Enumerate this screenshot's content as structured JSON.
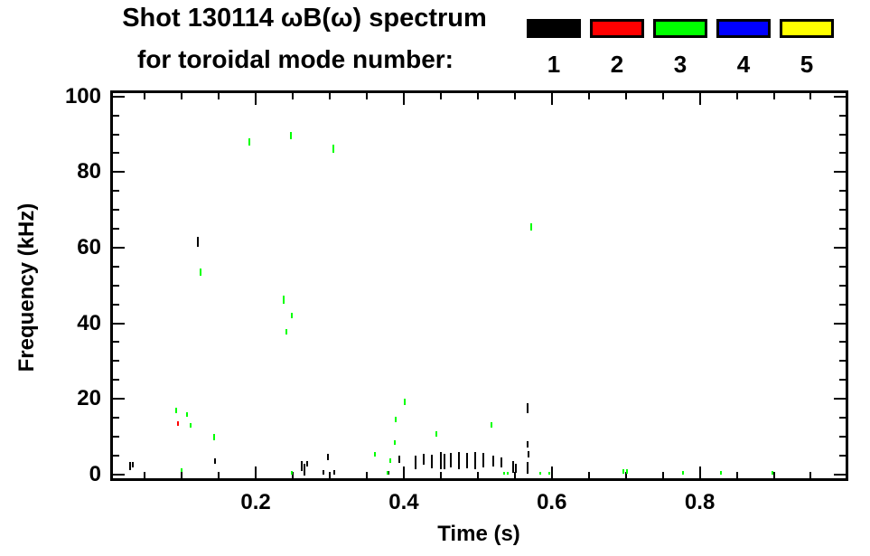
{
  "title": {
    "line1": "Shot 130114 ωB(ω) spectrum",
    "line2": "for toroidal mode number:"
  },
  "legend": {
    "entries": [
      {
        "label": "1",
        "color": "#000000"
      },
      {
        "label": "2",
        "color": "#ff0000"
      },
      {
        "label": "3",
        "color": "#00ff00"
      },
      {
        "label": "4",
        "color": "#0000ff"
      },
      {
        "label": "5",
        "color": "#ffff00"
      }
    ]
  },
  "chart_data": {
    "type": "scatter",
    "title": "Shot 130114 ωB(ω) spectrum for toroidal mode number:",
    "xlabel": "Time (s)",
    "ylabel": "Frequency (kHz)",
    "xlim": [
      0.007,
      0.997
    ],
    "ylim": [
      -1.0,
      100.9
    ],
    "x_major_ticks": [
      0.2,
      0.4,
      0.6,
      0.8
    ],
    "x_tick_labels": [
      "0.2",
      "0.4",
      "0.6",
      "0.8"
    ],
    "x_minor_step": 0.05,
    "y_major_ticks": [
      0,
      20,
      40,
      60,
      80,
      100
    ],
    "y_tick_labels": [
      "0",
      "20",
      "40",
      "60",
      "80",
      "100"
    ],
    "y_minor_step": 5,
    "grid": false,
    "legend_position": "top-right",
    "point_format": "[time_s, freq_khz, vertical_extent_khz]",
    "series": [
      {
        "name": "1",
        "color": "#000000",
        "points": [
          [
            0.03,
            2.2,
            2.0
          ],
          [
            0.034,
            2.6,
            1.5
          ],
          [
            0.122,
            61.5,
            2.5
          ],
          [
            0.145,
            3.5,
            1.5
          ],
          [
            0.262,
            2.2,
            2.5
          ],
          [
            0.266,
            1.3,
            3.0
          ],
          [
            0.27,
            2.8,
            1.5
          ],
          [
            0.291,
            0.6,
            1.2
          ],
          [
            0.297,
            4.6,
            1.5
          ],
          [
            0.306,
            0.6,
            1.2
          ],
          [
            0.379,
            0.5,
            1.0
          ],
          [
            0.394,
            4.0,
            2.0
          ],
          [
            0.416,
            3.2,
            3.5
          ],
          [
            0.427,
            4.0,
            3.0
          ],
          [
            0.438,
            3.4,
            3.5
          ],
          [
            0.45,
            3.6,
            4.5
          ],
          [
            0.455,
            3.4,
            4.0
          ],
          [
            0.463,
            3.8,
            4.0
          ],
          [
            0.474,
            3.6,
            4.5
          ],
          [
            0.485,
            3.7,
            4.0
          ],
          [
            0.496,
            3.6,
            4.5
          ],
          [
            0.507,
            3.8,
            4.0
          ],
          [
            0.521,
            3.5,
            3.0
          ],
          [
            0.532,
            3.2,
            2.5
          ],
          [
            0.548,
            2.0,
            3.0
          ],
          [
            0.552,
            1.6,
            2.5
          ],
          [
            0.567,
            17.5,
            2.5
          ],
          [
            0.567,
            8.0,
            1.5
          ],
          [
            0.568,
            5.3,
            1.8
          ],
          [
            0.567,
            1.8,
            3.2
          ]
        ]
      },
      {
        "name": "2",
        "color": "#ff0000",
        "points": [
          [
            0.095,
            13.4,
            1.2
          ]
        ]
      },
      {
        "name": "3",
        "color": "#00ff00",
        "points": [
          [
            0.092,
            16.9,
            1.5
          ],
          [
            0.1,
            1.2,
            1.0
          ],
          [
            0.107,
            15.9,
            1.2
          ],
          [
            0.112,
            13.0,
            1.2
          ],
          [
            0.125,
            53.5,
            1.8
          ],
          [
            0.144,
            9.9,
            1.5
          ],
          [
            0.191,
            88.0,
            1.8
          ],
          [
            0.248,
            89.7,
            2.0
          ],
          [
            0.305,
            86.2,
            2.0
          ],
          [
            0.238,
            46.2,
            2.0
          ],
          [
            0.249,
            42.0,
            1.5
          ],
          [
            0.241,
            37.8,
            1.5
          ],
          [
            0.249,
            0.4,
            1.0
          ],
          [
            0.361,
            5.3,
            1.2
          ],
          [
            0.378,
            0.4,
            1.0
          ],
          [
            0.382,
            3.6,
            1.2
          ],
          [
            0.388,
            8.4,
            1.2
          ],
          [
            0.389,
            14.6,
            1.5
          ],
          [
            0.401,
            19.2,
            1.5
          ],
          [
            0.444,
            10.8,
            1.5
          ],
          [
            0.518,
            13.2,
            1.5
          ],
          [
            0.535,
            0.3,
            0.8
          ],
          [
            0.541,
            0.3,
            0.8
          ],
          [
            0.572,
            65.5,
            2.0
          ],
          [
            0.585,
            0.3,
            0.8
          ],
          [
            0.596,
            0.3,
            0.8
          ],
          [
            0.697,
            0.7,
            1.2
          ],
          [
            0.701,
            0.7,
            1.2
          ],
          [
            0.777,
            0.5,
            1.0
          ],
          [
            0.828,
            0.5,
            1.0
          ],
          [
            0.898,
            0.5,
            1.0
          ]
        ]
      },
      {
        "name": "4",
        "color": "#0000ff",
        "points": []
      },
      {
        "name": "5",
        "color": "#ffff00",
        "points": []
      }
    ]
  }
}
